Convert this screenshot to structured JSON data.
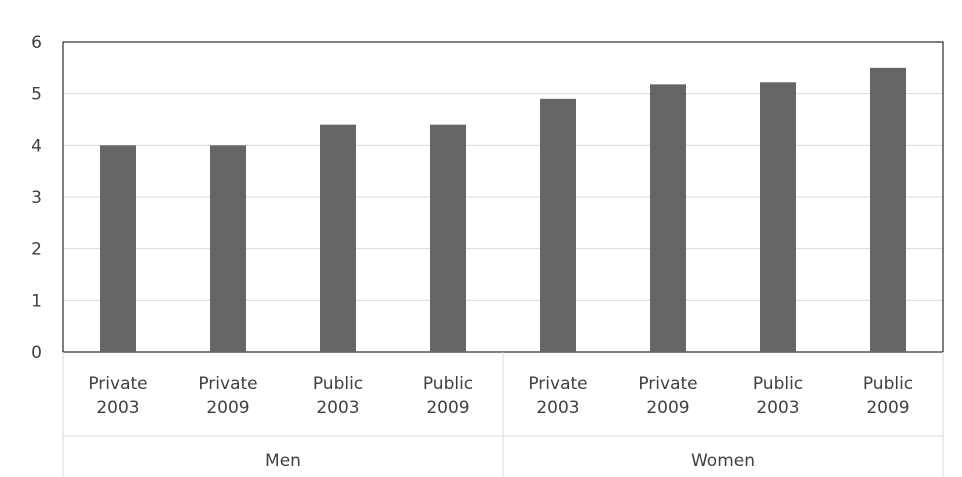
{
  "chart_data": {
    "type": "bar",
    "title": "",
    "xlabel": "",
    "ylabel": "",
    "ylim": [
      0,
      6
    ],
    "yticks": [
      0,
      1,
      2,
      3,
      4,
      5,
      6
    ],
    "grid": true,
    "legend": "none",
    "bar_color": "#666666",
    "categories": [
      [
        "Private",
        "2003"
      ],
      [
        "Private",
        "2009"
      ],
      [
        "Public",
        "2003"
      ],
      [
        "Public",
        "2009"
      ],
      [
        "Private",
        "2003"
      ],
      [
        "Private",
        "2009"
      ],
      [
        "Public",
        "2003"
      ],
      [
        "Public",
        "2009"
      ]
    ],
    "groups": [
      {
        "label": "Men",
        "size": 4
      },
      {
        "label": "Women",
        "size": 4
      }
    ],
    "values": [
      4.0,
      4.0,
      4.4,
      4.4,
      4.9,
      5.18,
      5.22,
      5.5
    ]
  }
}
